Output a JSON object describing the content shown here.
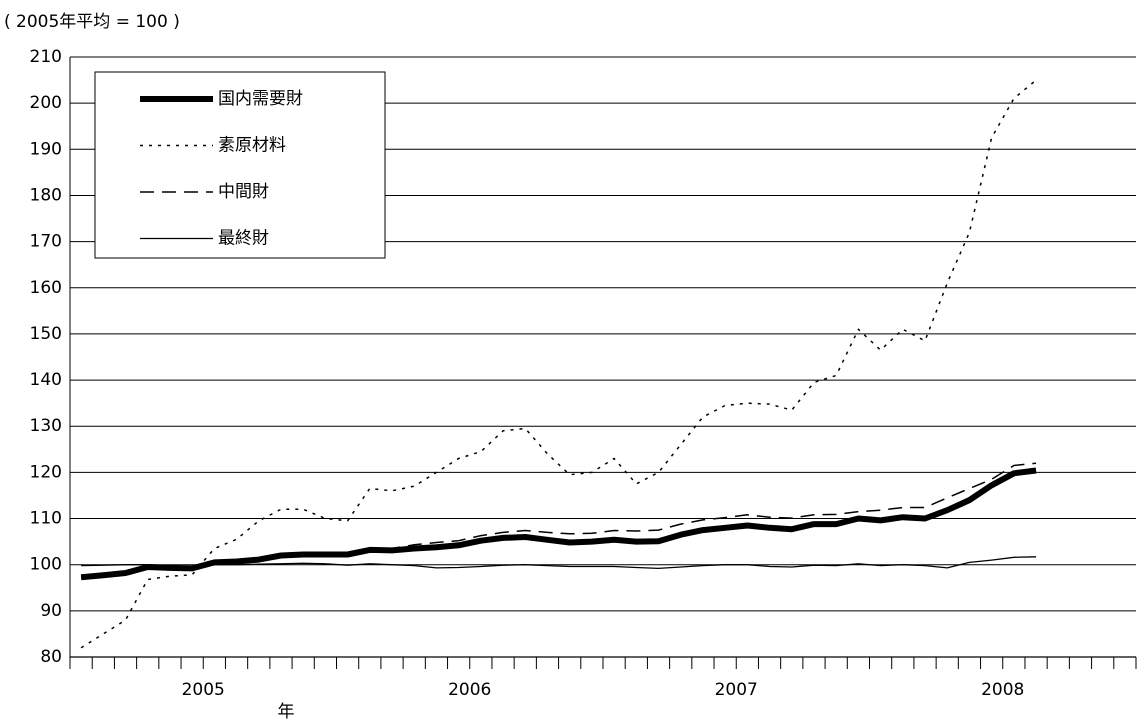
{
  "chart_data": {
    "type": "line",
    "subtitle": "( 2005年平均 = 100 )",
    "x_axis_label": "年",
    "year_labels": [
      "2005",
      "2006",
      "2007",
      "2008"
    ],
    "categories": [
      null,
      null,
      null,
      null,
      null,
      null,
      null,
      null,
      null,
      null,
      null,
      null,
      null,
      null,
      null,
      null,
      null,
      null,
      null,
      null,
      null,
      null,
      null,
      null,
      null,
      null,
      null,
      null,
      null,
      null,
      null,
      null,
      null,
      null,
      null,
      null,
      null,
      null,
      null,
      null,
      null,
      null,
      null,
      null,
      null,
      null,
      null,
      null
    ],
    "ylim": [
      80,
      210
    ],
    "yticks": [
      80,
      90,
      100,
      110,
      120,
      130,
      140,
      150,
      160,
      170,
      180,
      190,
      200,
      210
    ],
    "grid": true,
    "legend": "top-left",
    "series": [
      {
        "name": "国内需要財",
        "color": "#000000",
        "style": "solid",
        "width": 6,
        "values": [
          97.3,
          97.7,
          98.2,
          99.5,
          99.3,
          99.2,
          100.5,
          100.7,
          101.1,
          102,
          102.2,
          102.2,
          102.2,
          103.2,
          103.1,
          103.5,
          103.8,
          104.2,
          105.2,
          105.8,
          106,
          105.4,
          104.8,
          105,
          105.4,
          105,
          105.1,
          106.5,
          107.5,
          108,
          108.5,
          108,
          107.7,
          108.8,
          108.8,
          110,
          109.6,
          110.3,
          110,
          111.8,
          114,
          117.2,
          119.8,
          120.4,
          null,
          null,
          null,
          null
        ]
      },
      {
        "name": "素原材料",
        "color": "#000000",
        "style": "dotted",
        "width": 1.5,
        "values": [
          82,
          85,
          88,
          96.8,
          97.5,
          97.8,
          103.5,
          105.5,
          109.5,
          112,
          112,
          110,
          109.5,
          116.5,
          116,
          117,
          120,
          123,
          124.5,
          129,
          129.5,
          124,
          119.5,
          120,
          123,
          117.5,
          120,
          126,
          132,
          134.5,
          135,
          134.8,
          133.5,
          139.5,
          141,
          151,
          146.5,
          151,
          148.5,
          161,
          172,
          192.5,
          201,
          205,
          null,
          null,
          null,
          null
        ]
      },
      {
        "name": "中間財",
        "color": "#000000",
        "style": "dashed",
        "width": 1.5,
        "values": [
          97.3,
          97.7,
          98.2,
          99.5,
          99.3,
          99.2,
          100.5,
          100.5,
          101,
          102,
          102.2,
          102.2,
          102.2,
          103.3,
          103.5,
          104.3,
          104.8,
          105.2,
          106.3,
          107,
          107.4,
          107,
          106.7,
          106.8,
          107.4,
          107.3,
          107.5,
          108.8,
          109.7,
          110.2,
          110.8,
          110.3,
          110.1,
          110.8,
          110.9,
          111.5,
          111.8,
          112.4,
          112.4,
          114.5,
          116.5,
          118.5,
          121.5,
          122,
          null,
          null,
          null,
          null
        ]
      },
      {
        "name": "最終財",
        "color": "#000000",
        "style": "solid",
        "width": 1.3,
        "values": [
          99.8,
          99.9,
          100,
          100,
          99.6,
          99.4,
          100,
          100,
          100.1,
          100.2,
          100.3,
          100.2,
          99.9,
          100.2,
          100,
          99.8,
          99.3,
          99.4,
          99.6,
          99.9,
          100,
          99.8,
          99.6,
          99.6,
          99.6,
          99.4,
          99.2,
          99.5,
          99.8,
          100,
          100,
          99.6,
          99.5,
          99.9,
          99.8,
          100.2,
          99.8,
          100,
          99.8,
          99.3,
          100.5,
          101,
          101.6,
          101.7,
          null,
          null,
          null,
          null
        ]
      }
    ]
  }
}
